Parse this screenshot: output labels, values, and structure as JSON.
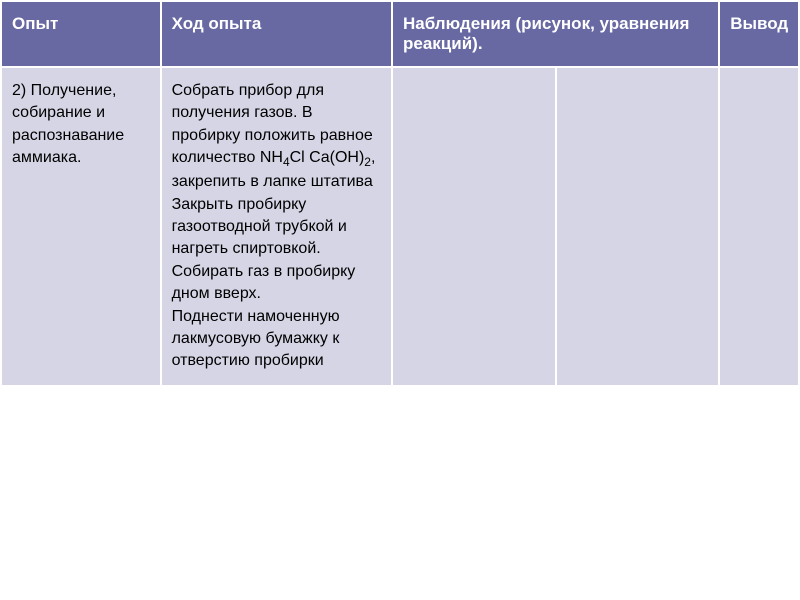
{
  "table": {
    "header_bg": "#6868a3",
    "header_text_color": "#ffffff",
    "cell_bg": "#d5d5e5",
    "cell_text_color": "#000000",
    "border_color": "#ffffff",
    "columns": [
      {
        "label": "Опыт",
        "width": "20%"
      },
      {
        "label": "Ход опыта",
        "width": "29%"
      },
      {
        "label": "Наблюдения (рисунок, уравнения реакций).",
        "width": "41%",
        "colspan": 2
      },
      {
        "label": "Вывод",
        "width": "10%"
      }
    ],
    "rows": [
      {
        "experiment": "2) Получение, собирание и распознавание аммиака.",
        "procedure_part1": "Собрать прибор для получения газов. В пробирку положить равное количество NH",
        "procedure_sub1": "4",
        "procedure_mid1": "Cl Ca(OH)",
        "procedure_sub2": "2",
        "procedure_part2": ", закрепить в лапке штатива Закрыть пробирку газоотводной трубкой и нагреть спиртовкой. Собирать газ в пробирку дном вверх.",
        "procedure_part3": "Поднести намоченную лакмусовую бумажку к отверстию пробирки",
        "observations1": "",
        "observations2": "",
        "conclusion": ""
      }
    ]
  }
}
